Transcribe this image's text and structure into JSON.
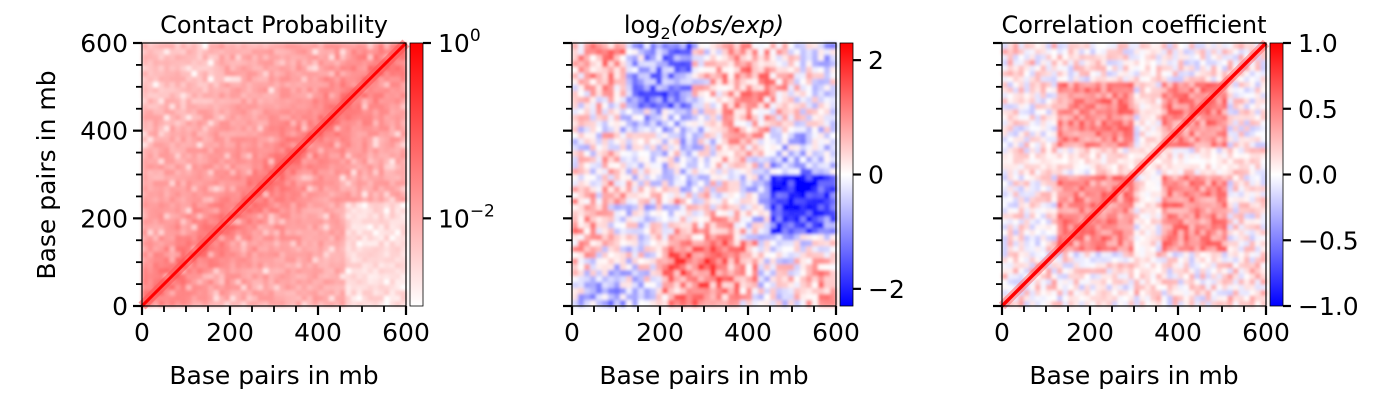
{
  "chart_data": [
    {
      "type": "heatmap",
      "title": "Contact Probability",
      "xlabel": "Base pairs in mb",
      "ylabel": "Base pairs in mb",
      "xlim": [
        0,
        600
      ],
      "ylim": [
        0,
        600
      ],
      "x_ticks": [
        "0",
        "200",
        "400",
        "600"
      ],
      "y_ticks": [
        "0",
        "200",
        "400",
        "600"
      ],
      "minor_tick_step": 50,
      "colorbar": {
        "scale": "log",
        "range": [
          0.001,
          1
        ],
        "colors": [
          "#ffffff",
          "#ff0000"
        ],
        "ticks": [
          {
            "base": "10",
            "exp": "0",
            "value": 1
          },
          {
            "base": "10",
            "exp": "−2",
            "value": 0.01
          }
        ]
      }
    },
    {
      "type": "heatmap",
      "title": {
        "prefix": "log",
        "sub": "2",
        "body": "(obs/exp)"
      },
      "xlabel": "Base pairs in mb",
      "ylabel": "",
      "xlim": [
        0,
        600
      ],
      "ylim": [
        0,
        600
      ],
      "x_ticks": [
        "0",
        "200",
        "400",
        "600"
      ],
      "y_ticks": [],
      "minor_tick_step": 50,
      "colorbar": {
        "scale": "linear",
        "range": [
          -2.3,
          2.3
        ],
        "colors": [
          "#0000ff",
          "#ffffff",
          "#ff0000"
        ],
        "ticks": [
          {
            "label": "2",
            "value": 2
          },
          {
            "label": "0",
            "value": 0
          },
          {
            "label": "−2",
            "value": -2
          }
        ]
      }
    },
    {
      "type": "heatmap",
      "title": "Correlation coefficient",
      "xlabel": "Base pairs in mb",
      "ylabel": "",
      "xlim": [
        0,
        600
      ],
      "ylim": [
        0,
        600
      ],
      "x_ticks": [
        "0",
        "200",
        "400",
        "600"
      ],
      "y_ticks": [],
      "minor_tick_step": 50,
      "colorbar": {
        "scale": "linear",
        "range": [
          -1,
          1
        ],
        "colors": [
          "#0000ff",
          "#ffffff",
          "#ff0000"
        ],
        "ticks": [
          {
            "label": "1.0",
            "value": 1
          },
          {
            "label": "0.5",
            "value": 0.5
          },
          {
            "label": "0.0",
            "value": 0
          },
          {
            "label": "−0.5",
            "value": -0.5
          },
          {
            "label": "−1.0",
            "value": -1
          }
        ]
      }
    }
  ]
}
